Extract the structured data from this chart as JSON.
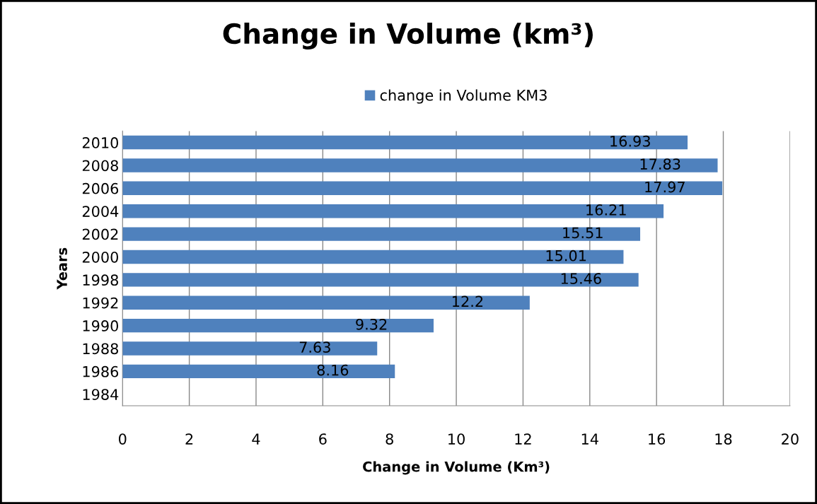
{
  "chart_data": {
    "type": "bar",
    "orientation": "horizontal",
    "title": "Change in Volume (km³)",
    "xlabel": "Change in Volume (Km³)",
    "ylabel": "Years",
    "categories": [
      "2010",
      "2008",
      "2006",
      "2004",
      "2002",
      "2000",
      "1998",
      "1992",
      "1990",
      "1988",
      "1986",
      "1984"
    ],
    "series": [
      {
        "name": "change in Volume KM3",
        "color": "#4f81bd",
        "values": [
          16.93,
          17.83,
          17.97,
          16.21,
          15.51,
          15.01,
          15.46,
          12.2,
          9.32,
          7.63,
          8.16,
          null
        ]
      }
    ],
    "xlim": [
      0,
      20
    ],
    "xticks": [
      0,
      2,
      4,
      6,
      8,
      10,
      12,
      14,
      16,
      18,
      20
    ],
    "grid": "x",
    "legend": "top",
    "data_labels": true
  }
}
